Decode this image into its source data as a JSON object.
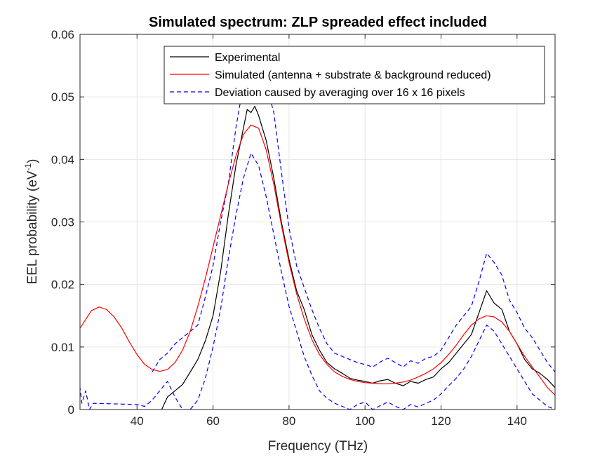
{
  "chart_data": {
    "type": "line",
    "title": "Simulated spectrum: ZLP spreaded effect included",
    "xlabel": "Frequency (THz)",
    "ylabel_main": "EEL probability (eV",
    "ylabel_sup": "-1",
    "ylabel_close": ")",
    "xlim": [
      25,
      150
    ],
    "ylim": [
      0,
      0.06
    ],
    "xticks": [
      40,
      60,
      80,
      100,
      120,
      140
    ],
    "xtick_labels": [
      "40",
      "60",
      "80",
      "100",
      "120",
      "140"
    ],
    "yticks": [
      0,
      0.01,
      0.02,
      0.03,
      0.04,
      0.05,
      0.06
    ],
    "ytick_labels": [
      "0",
      "0.01",
      "0.02",
      "0.03",
      "0.04",
      "0.05",
      "0.06"
    ],
    "grid": true,
    "legend_position": "top-right",
    "series": [
      {
        "name": "Experimental",
        "color": "#000000",
        "style": "solid",
        "x": [
          46.5,
          48,
          50,
          52,
          54,
          56,
          58,
          60,
          62,
          64,
          66,
          68,
          69,
          70,
          71,
          72,
          74,
          76,
          78,
          80,
          82,
          84,
          86,
          88,
          90,
          92,
          94,
          96,
          98,
          100,
          102,
          104,
          106,
          108,
          110,
          112,
          114,
          116,
          118,
          120,
          122,
          124,
          126,
          128,
          130,
          132,
          134,
          136,
          138,
          140,
          142,
          144,
          146,
          148,
          150
        ],
        "y": [
          0.0,
          0.002,
          0.003,
          0.004,
          0.006,
          0.008,
          0.011,
          0.015,
          0.022,
          0.031,
          0.039,
          0.045,
          0.048,
          0.0475,
          0.0485,
          0.047,
          0.043,
          0.037,
          0.03,
          0.024,
          0.019,
          0.016,
          0.012,
          0.0095,
          0.0075,
          0.0065,
          0.0058,
          0.005,
          0.0047,
          0.0045,
          0.0042,
          0.0046,
          0.0048,
          0.0042,
          0.0038,
          0.0045,
          0.0042,
          0.0048,
          0.0052,
          0.0065,
          0.0075,
          0.009,
          0.0105,
          0.012,
          0.0155,
          0.019,
          0.017,
          0.016,
          0.0125,
          0.0105,
          0.008,
          0.0065,
          0.0058,
          0.0048,
          0.0035
        ]
      },
      {
        "name": "Simulated (antenna + substrate & background reduced)",
        "color": "#ff0000",
        "style": "solid",
        "x": [
          25,
          28,
          30,
          32,
          34,
          36,
          38,
          40,
          42,
          44,
          46,
          48,
          50,
          52,
          54,
          56,
          58,
          60,
          62,
          64,
          66,
          68,
          70,
          72,
          74,
          76,
          78,
          80,
          82,
          84,
          86,
          88,
          90,
          92,
          94,
          96,
          98,
          100,
          102,
          104,
          106,
          108,
          110,
          112,
          114,
          116,
          118,
          120,
          122,
          124,
          126,
          128,
          130,
          132,
          134,
          136,
          138,
          140,
          142,
          144,
          146,
          148,
          150
        ],
        "y": [
          0.013,
          0.0158,
          0.0164,
          0.016,
          0.0148,
          0.013,
          0.0108,
          0.0088,
          0.0072,
          0.0064,
          0.0061,
          0.0064,
          0.0075,
          0.0095,
          0.0125,
          0.0165,
          0.021,
          0.026,
          0.031,
          0.036,
          0.0405,
          0.044,
          0.0455,
          0.045,
          0.0415,
          0.036,
          0.0295,
          0.0235,
          0.0185,
          0.0145,
          0.0112,
          0.0088,
          0.0072,
          0.006,
          0.0053,
          0.0048,
          0.0045,
          0.0043,
          0.0042,
          0.0041,
          0.0041,
          0.0042,
          0.0044,
          0.0047,
          0.0052,
          0.0058,
          0.0065,
          0.0075,
          0.0088,
          0.0103,
          0.012,
          0.0135,
          0.0145,
          0.015,
          0.0148,
          0.014,
          0.0125,
          0.0105,
          0.0085,
          0.0068,
          0.0052,
          0.0035,
          0.0023
        ]
      },
      {
        "name": "Deviation caused by averaging over 16 x 16 pixels",
        "color": "#0000ff",
        "style": "dashed",
        "x": [
          44,
          46,
          48,
          50,
          52,
          54,
          56,
          58,
          60,
          62,
          64,
          66,
          68,
          69,
          70,
          72,
          74,
          76,
          78,
          80,
          82,
          84,
          86,
          88,
          90,
          92,
          94,
          96,
          98,
          100,
          102,
          104,
          106,
          108,
          110,
          112,
          114,
          116,
          118,
          120,
          122,
          124,
          126,
          128,
          130,
          132,
          134,
          136,
          138,
          140,
          142,
          144,
          146,
          148,
          150
        ],
        "y": [
          0.006,
          0.008,
          0.009,
          0.0105,
          0.0115,
          0.0125,
          0.0135,
          0.018,
          0.023,
          0.03,
          0.036,
          0.045,
          0.052,
          0.053,
          0.054,
          0.0545,
          0.052,
          0.0475,
          0.038,
          0.029,
          0.023,
          0.0195,
          0.016,
          0.013,
          0.0105,
          0.009,
          0.0085,
          0.008,
          0.0075,
          0.0072,
          0.0068,
          0.0076,
          0.0082,
          0.0075,
          0.0068,
          0.0078,
          0.0074,
          0.0082,
          0.0085,
          0.0095,
          0.0115,
          0.0135,
          0.015,
          0.0165,
          0.0205,
          0.025,
          0.0235,
          0.0215,
          0.0175,
          0.0155,
          0.013,
          0.0115,
          0.0095,
          0.0075,
          0.006
        ]
      },
      {
        "name": "",
        "color": "#0000ff",
        "style": "dashed",
        "x": [
          24.5,
          25.5,
          26.5,
          27.5,
          28.5,
          40,
          42,
          44,
          46,
          48,
          50,
          52,
          54,
          56,
          58,
          60,
          62,
          64,
          66,
          68,
          70,
          72,
          74,
          76,
          78,
          80,
          82,
          84,
          86,
          88,
          90,
          92,
          94,
          96,
          98,
          100,
          102,
          104,
          106,
          108,
          110,
          112,
          114,
          116,
          118,
          120,
          122,
          124,
          126,
          128,
          130,
          132,
          134,
          136,
          138,
          140,
          142,
          144,
          146,
          148,
          150
        ],
        "y": [
          0.006,
          0.001,
          0.003,
          0.0,
          0.001,
          0.0008,
          0.0005,
          0.0015,
          0.003,
          0.0045,
          0.002,
          0.0,
          0.0,
          0.0015,
          0.005,
          0.01,
          0.016,
          0.024,
          0.031,
          0.037,
          0.041,
          0.039,
          0.034,
          0.028,
          0.022,
          0.0165,
          0.0125,
          0.0085,
          0.0055,
          0.003,
          0.0018,
          0.001,
          0.0005,
          0.0,
          0.0008,
          0.0012,
          0.0,
          0.0006,
          0.0012,
          0.0005,
          0.0,
          0.0008,
          0.0004,
          0.001,
          0.0015,
          0.0025,
          0.0038,
          0.005,
          0.0065,
          0.0085,
          0.011,
          0.0135,
          0.0125,
          0.0105,
          0.0085,
          0.0065,
          0.0045,
          0.0025,
          0.0015,
          0.0005,
          0.0
        ]
      }
    ]
  }
}
